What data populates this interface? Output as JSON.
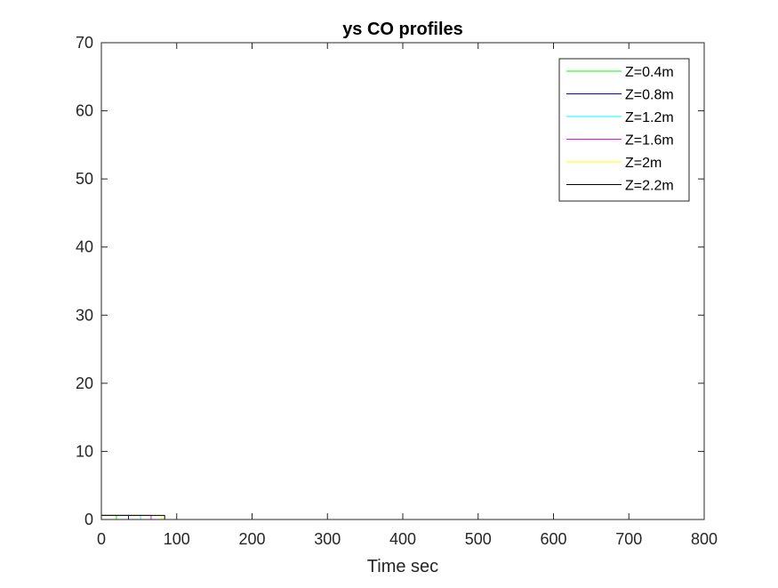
{
  "chart_data": {
    "type": "line",
    "title": "ys CO profiles",
    "xlabel": "Time sec",
    "ylabel": "",
    "xlim": [
      0,
      800
    ],
    "ylim": [
      0,
      70
    ],
    "xticks": [
      0,
      100,
      200,
      300,
      400,
      500,
      600,
      700,
      800
    ],
    "yticks": [
      0,
      10,
      20,
      30,
      40,
      50,
      60,
      70
    ],
    "grid": false,
    "legend_position": "top-right",
    "series": [
      {
        "name": "Z=0.4m",
        "color": "#00ff00",
        "x": [
          0,
          20,
          20,
          800
        ],
        "y": [
          0.6,
          0.6,
          0,
          0
        ]
      },
      {
        "name": "Z=0.8m",
        "color": "#0000ff",
        "x": [
          0,
          36,
          36,
          800
        ],
        "y": [
          0.6,
          0.6,
          0,
          0
        ]
      },
      {
        "name": "Z=1.2m",
        "color": "#00ffff",
        "x": [
          0,
          52,
          52,
          800
        ],
        "y": [
          0.6,
          0.6,
          0,
          0
        ]
      },
      {
        "name": "Z=1.6m",
        "color": "#ff00ff",
        "x": [
          0,
          66,
          66,
          800
        ],
        "y": [
          0.6,
          0.6,
          0,
          0
        ]
      },
      {
        "name": "Z=2m",
        "color": "#ffff00",
        "x": [
          0,
          80,
          80,
          800
        ],
        "y": [
          0.6,
          0.6,
          0,
          0
        ]
      },
      {
        "name": "Z=2.2m",
        "color": "#000000",
        "x": [
          0,
          84,
          84,
          800
        ],
        "y": [
          0.6,
          0.6,
          0,
          0
        ]
      }
    ]
  }
}
